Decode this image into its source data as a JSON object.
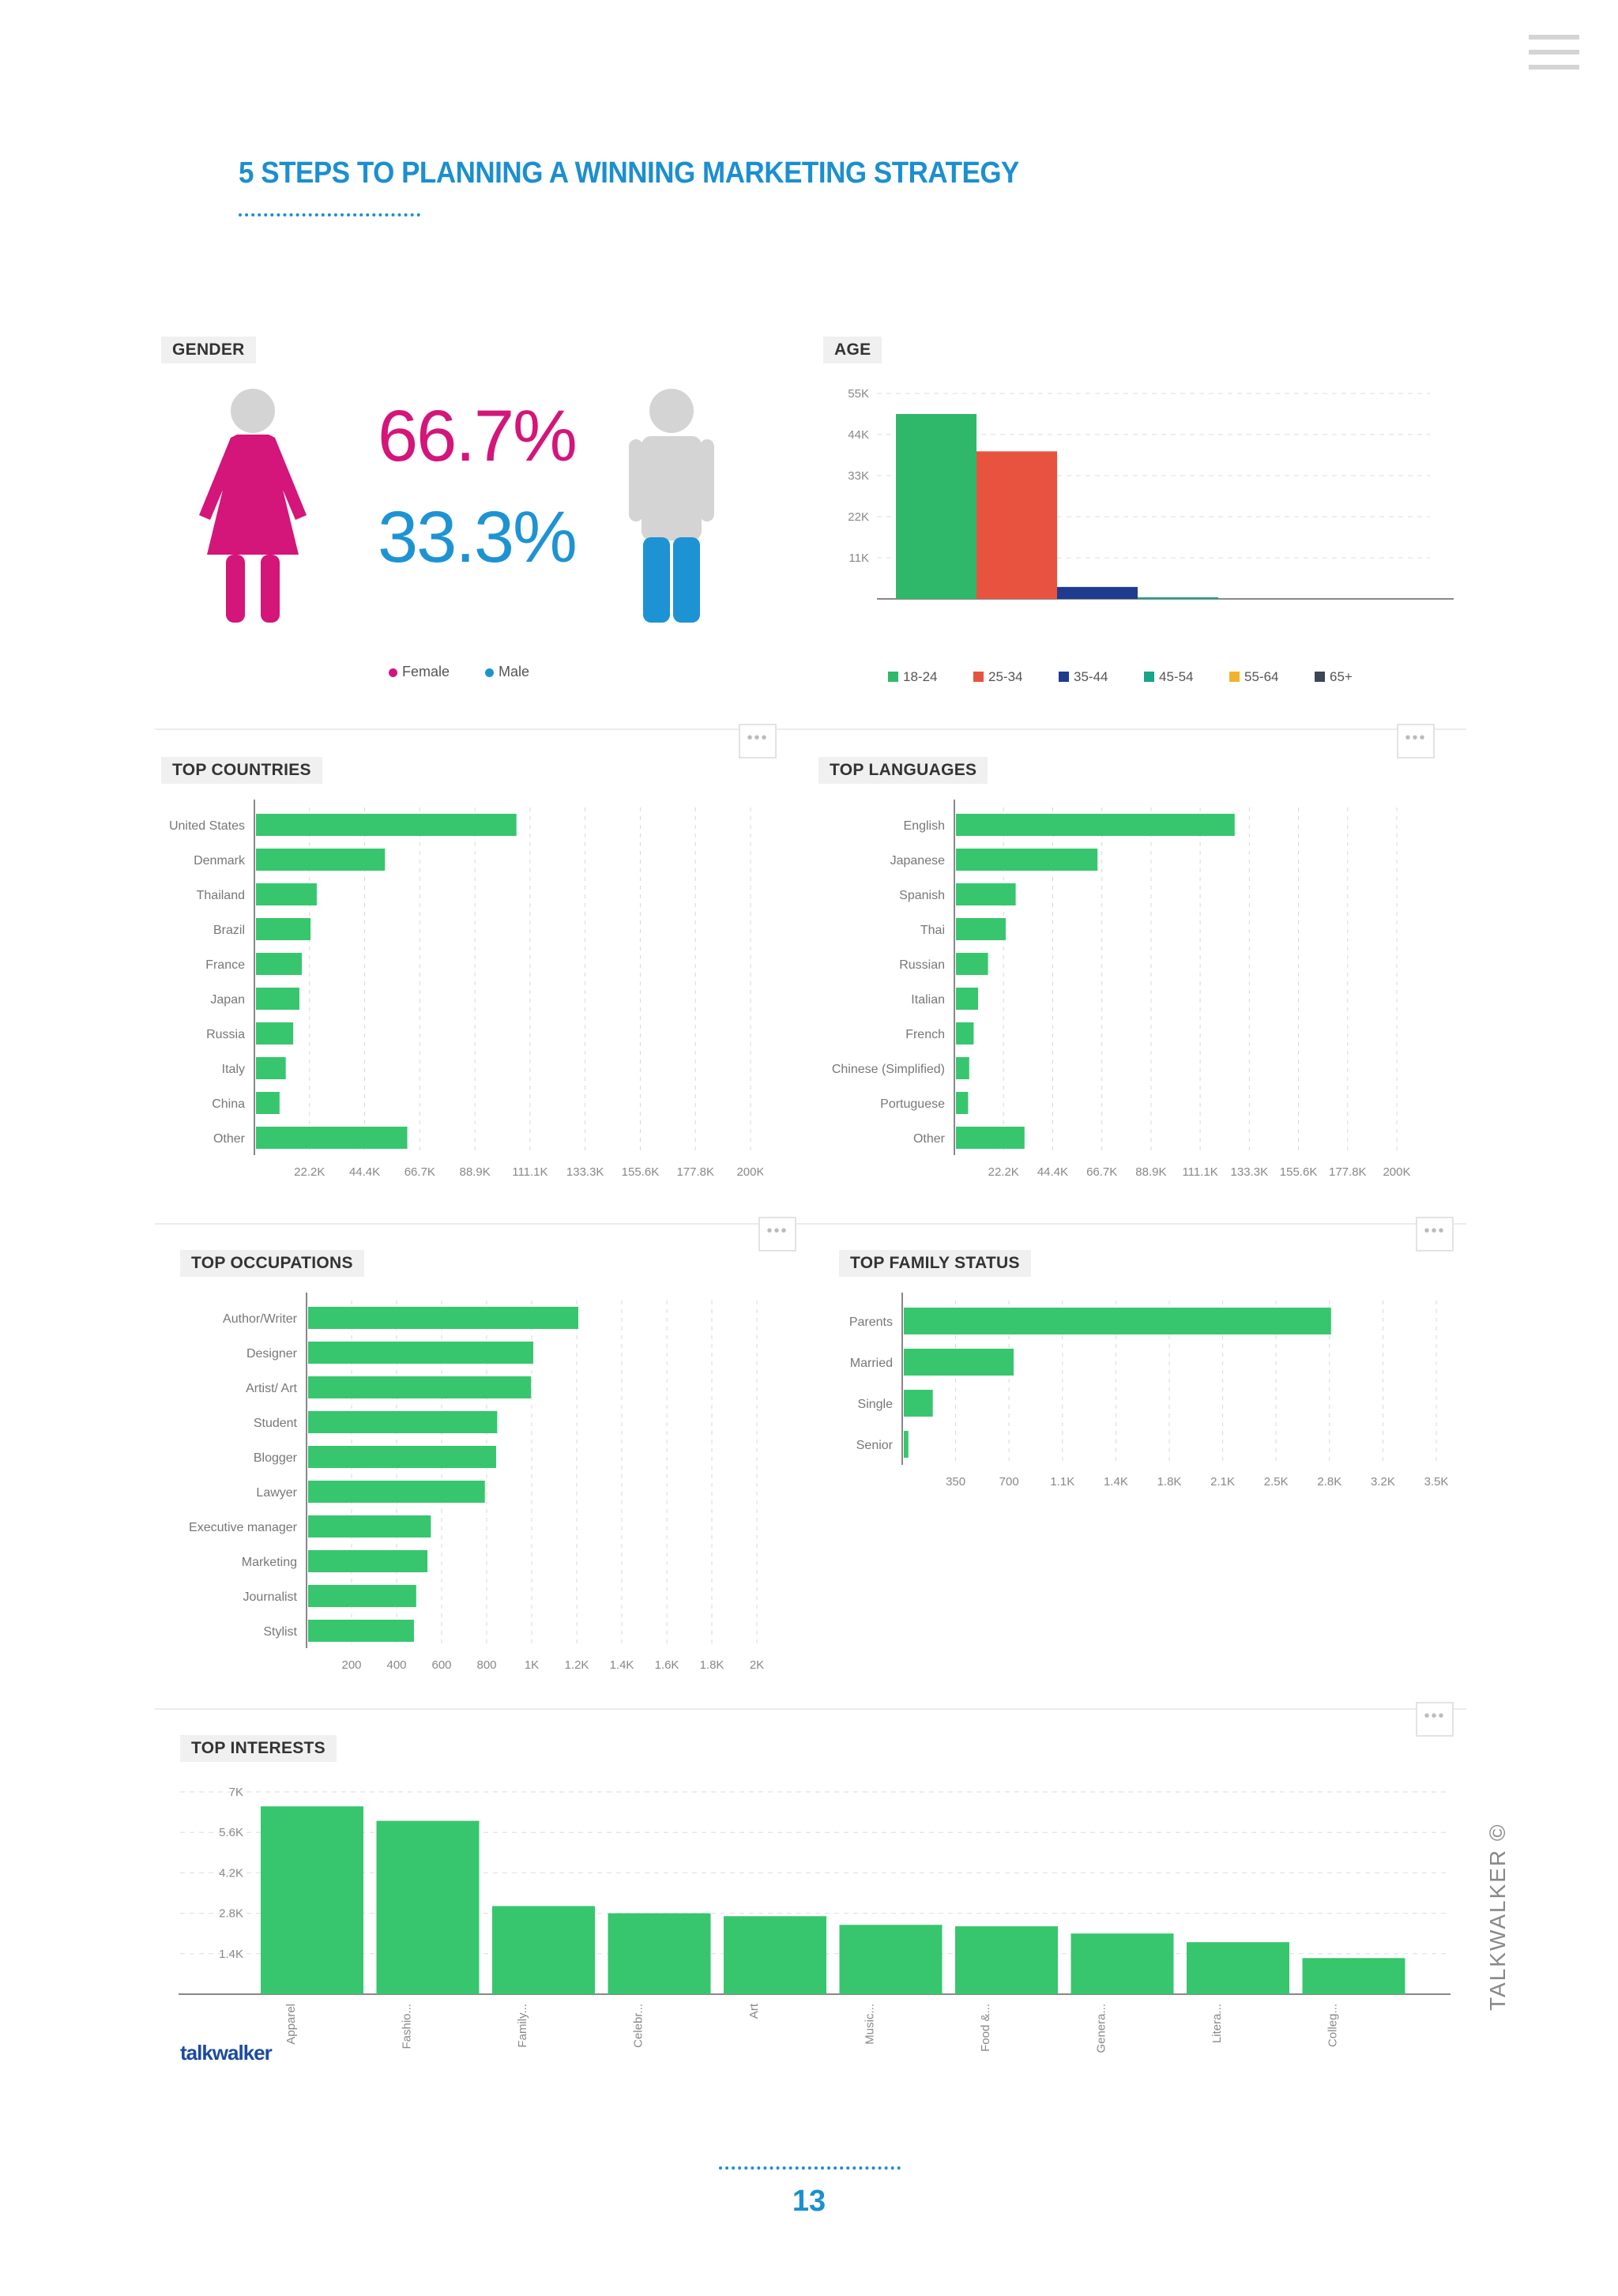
{
  "header": {
    "title": "5 STEPS TO PLANNING A WINNING MARKETING STRATEGY",
    "page_number": "13"
  },
  "brand": {
    "logo_text": "talkwalker",
    "side_text": "TALKWALKER ©"
  },
  "colors": {
    "accent": "#1b8fd0",
    "bar_green": "#37c66e",
    "female": "#d4157a",
    "male": "#1e93d3"
  },
  "gender": {
    "label": "GENDER",
    "female_pct": "66.7%",
    "male_pct": "33.3%",
    "legend_female": "Female",
    "legend_male": "Male"
  },
  "more_button": "•••",
  "chart_data": [
    {
      "type": "bar",
      "title": "AGE",
      "categories": [
        "18-24",
        "25-34",
        "35-44",
        "45-54",
        "55-64",
        "65+"
      ],
      "values": [
        49500,
        39500,
        3200,
        400,
        0,
        0
      ],
      "colors": [
        "#2fb86a",
        "#e8533f",
        "#1f3b8f",
        "#18a58a",
        "#f4b22a",
        "#3b4658"
      ],
      "yticks": [
        "11K",
        "22K",
        "33K",
        "44K",
        "55K"
      ],
      "ylim": [
        0,
        55000
      ],
      "grid": true,
      "legend": "bottom"
    },
    {
      "type": "bar",
      "orientation": "horizontal",
      "title": "TOP COUNTRIES",
      "categories": [
        "United States",
        "Denmark",
        "Thailand",
        "Brazil",
        "France",
        "Japan",
        "Russia",
        "Italy",
        "China",
        "Other"
      ],
      "values": [
        105000,
        52000,
        24500,
        22000,
        18500,
        17500,
        15000,
        12000,
        9500,
        61000
      ],
      "xticks": [
        "22.2K",
        "44.4K",
        "66.7K",
        "88.9K",
        "111.1K",
        "133.3K",
        "155.6K",
        "177.8K",
        "200K"
      ],
      "xlim": [
        0,
        200000
      ],
      "grid": true
    },
    {
      "type": "bar",
      "orientation": "horizontal",
      "title": "TOP LANGUAGES",
      "categories": [
        "English",
        "Japanese",
        "Spanish",
        "Thai",
        "Russian",
        "Italian",
        "French",
        "Chinese (Simplified)",
        "Portuguese",
        "Other"
      ],
      "values": [
        126000,
        64000,
        27000,
        22500,
        14500,
        10000,
        8000,
        6000,
        5500,
        31000
      ],
      "xticks": [
        "22.2K",
        "44.4K",
        "66.7K",
        "88.9K",
        "111.1K",
        "133.3K",
        "155.6K",
        "177.8K",
        "200K"
      ],
      "xlim": [
        0,
        200000
      ],
      "grid": true
    },
    {
      "type": "bar",
      "orientation": "horizontal",
      "title": "TOP OCCUPATIONS",
      "categories": [
        "Author/Writer",
        "Designer",
        "Artist/ Art",
        "Student",
        "Blogger",
        "Lawyer",
        "Executive manager",
        "Marketing",
        "Journalist",
        "Stylist"
      ],
      "values": [
        1200,
        1000,
        990,
        840,
        835,
        785,
        545,
        530,
        480,
        470
      ],
      "xticks": [
        "200",
        "400",
        "600",
        "800",
        "1K",
        "1.2K",
        "1.4K",
        "1.6K",
        "1.8K",
        "2K"
      ],
      "xlim": [
        0,
        2000
      ],
      "grid": true
    },
    {
      "type": "bar",
      "orientation": "horizontal",
      "title": "TOP FAMILY STATUS",
      "categories": [
        "Parents",
        "Married",
        "Single",
        "Senior"
      ],
      "values": [
        2800,
        720,
        190,
        30
      ],
      "xticks": [
        "350",
        "700",
        "1.1K",
        "1.4K",
        "1.8K",
        "2.1K",
        "2.5K",
        "2.8K",
        "3.2K",
        "3.5K"
      ],
      "xlim": [
        0,
        3500
      ],
      "grid": true
    },
    {
      "type": "bar",
      "title": "TOP INTERESTS",
      "categories": [
        "Apparel",
        "Fashio...",
        "Family...",
        "Celebr...",
        "Art",
        "Music...",
        "Food &...",
        "Genera...",
        "Litera...",
        "Colleg..."
      ],
      "values": [
        6500,
        6000,
        3050,
        2800,
        2700,
        2400,
        2350,
        2100,
        1800,
        1250
      ],
      "yticks": [
        "1.4K",
        "2.8K",
        "4.2K",
        "5.6K",
        "7K"
      ],
      "ylim": [
        0,
        7000
      ],
      "grid": true
    }
  ]
}
